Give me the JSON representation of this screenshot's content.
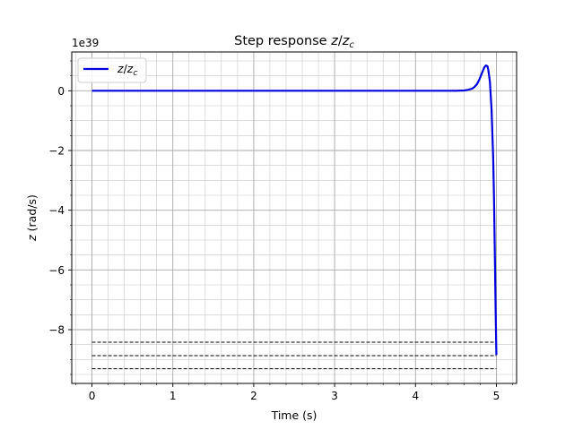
{
  "chart_data": {
    "type": "line",
    "title": "Step response z/z_c",
    "title_parts": {
      "lead": "Step response ",
      "a": "z",
      "slash": "/",
      "b": "z",
      "sub": "c"
    },
    "xlabel": "Time (s)",
    "ylabel_parts": {
      "var": "z",
      "unit": " (rad/s)"
    },
    "offset_text": "1e39",
    "x_ticks": [
      0,
      1,
      2,
      3,
      4,
      5
    ],
    "y_ticks": [
      0,
      -2,
      -4,
      -6,
      -8
    ],
    "y_tick_labels": [
      "0",
      "−2",
      "−4",
      "−6",
      "−8"
    ],
    "xlim": [
      -0.25,
      5.25
    ],
    "ylim": [
      -9.8,
      1.3
    ],
    "y_scale_multiplier": 1e+39,
    "grid": true,
    "minor_grid": true,
    "legend": {
      "placement": "top-left",
      "entry": {
        "a": "z",
        "slash": "/",
        "b": "z",
        "sub": "c"
      }
    },
    "series": [
      {
        "style": "solid",
        "color": "#0000dd",
        "x": [
          0,
          1,
          2,
          3,
          4,
          4.5,
          4.6,
          4.65,
          4.7,
          4.73,
          4.76,
          4.79,
          4.82,
          4.85,
          4.87,
          4.89,
          4.9,
          4.92,
          4.94,
          4.96,
          4.97,
          4.98,
          4.99,
          5.0
        ],
        "y": [
          0,
          0,
          0,
          0,
          0,
          0,
          0.01,
          0.03,
          0.07,
          0.13,
          0.22,
          0.38,
          0.58,
          0.78,
          0.85,
          0.82,
          0.7,
          0.3,
          -0.6,
          -2.2,
          -3.5,
          -5.3,
          -7.2,
          -8.85
        ]
      }
    ],
    "reference_lines": [
      {
        "style": "dashed",
        "color": "#000000",
        "y": -8.42,
        "x_range": [
          0,
          5.0
        ]
      },
      {
        "style": "dashed",
        "color": "#000000",
        "y": -8.87,
        "x_range": [
          0,
          5.0
        ]
      },
      {
        "style": "dashed",
        "color": "#000000",
        "y": -9.31,
        "x_range": [
          0,
          5.0
        ]
      }
    ]
  }
}
